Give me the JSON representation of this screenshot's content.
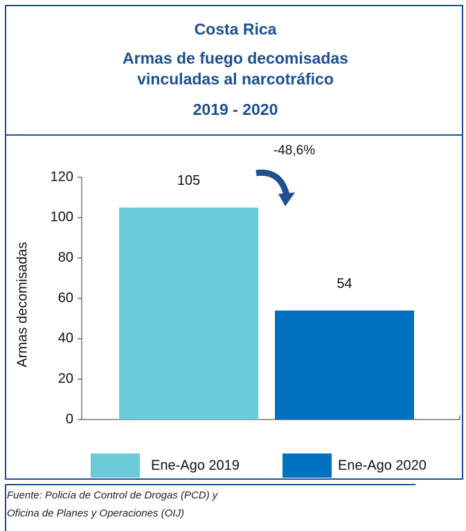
{
  "chart_data": {
    "type": "bar",
    "title": "Costa Rica",
    "subtitle": [
      "Armas de fuego decomisadas",
      "vinculadas al narcotráfico"
    ],
    "period": "2019 - 2020",
    "y_label": "Armas decomisadas",
    "annotation": "-48,6%",
    "categories": [
      "Ene-Ago 2019",
      "Ene-Ago 2020"
    ],
    "values": [
      105,
      54
    ],
    "colors": [
      "#6ccbdb",
      "#0070c0"
    ],
    "ylim": [
      0,
      120
    ],
    "yticks": [
      0,
      20,
      40,
      60,
      80,
      100,
      120
    ],
    "source": [
      "Fuente: Policía de Control de Drogas (PCD) y",
      "Oficina de Planes y Operaciones (OIJ)"
    ]
  }
}
